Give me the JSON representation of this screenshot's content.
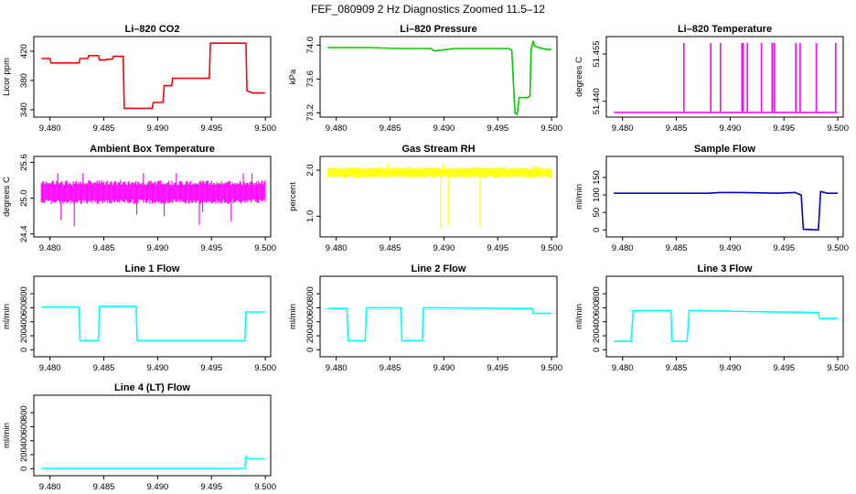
{
  "page_title": "FEF_080909  2 Hz Diagnostics Zoomed 11.5–12",
  "chart_data": [
    {
      "id": "p1",
      "type": "line",
      "title": "Li–820 CO2",
      "ylabel": "Licor ppm",
      "color": "#ff0000",
      "xlim": [
        9.4785,
        9.5005
      ],
      "ylim": [
        330,
        440
      ],
      "xticks": [
        "9.480",
        "9.485",
        "9.490",
        "9.495",
        "9.500"
      ],
      "yticks": [
        "340",
        "380",
        "420"
      ],
      "ytick_values": [
        340,
        380,
        420
      ],
      "x": [
        9.4792,
        9.48,
        9.4801,
        9.4827,
        9.4828,
        9.4835,
        9.4836,
        9.4845,
        9.4846,
        9.4852,
        9.4853,
        9.4858,
        9.4859,
        9.4868,
        9.4869,
        9.4895,
        9.4896,
        9.4905,
        9.4906,
        9.4913,
        9.4914,
        9.4948,
        9.4949,
        9.4982,
        9.4983,
        9.4988,
        9.5
      ],
      "y": [
        410,
        410,
        404,
        404,
        410,
        410,
        414,
        414,
        408,
        408,
        409,
        409,
        413,
        413,
        342,
        342,
        350,
        350,
        373,
        373,
        383,
        383,
        431,
        431,
        366,
        363,
        363
      ]
    },
    {
      "id": "p2",
      "type": "line",
      "title": "Li–820 Pressure",
      "ylabel": "kPa",
      "color": "#00cc00",
      "xlim": [
        9.4785,
        9.5005
      ],
      "ylim": [
        73.15,
        74.1
      ],
      "xticks": [
        "9.480",
        "9.485",
        "9.490",
        "9.495",
        "9.500"
      ],
      "yticks": [
        "73.2",
        "73.6",
        "74.0"
      ],
      "ytick_values": [
        73.2,
        73.6,
        74.0
      ],
      "x": [
        9.4792,
        9.483,
        9.486,
        9.4888,
        9.4891,
        9.491,
        9.4935,
        9.496,
        9.4963,
        9.4966,
        9.4968,
        9.497,
        9.4975,
        9.4978,
        9.498,
        9.4981,
        9.4983,
        9.4984,
        9.4988,
        9.4995,
        9.5
      ],
      "y": [
        73.97,
        73.97,
        73.96,
        73.96,
        73.93,
        73.96,
        73.96,
        73.96,
        73.94,
        73.2,
        73.18,
        73.38,
        73.38,
        73.38,
        73.4,
        73.95,
        74.05,
        73.99,
        73.97,
        73.95,
        73.95
      ]
    },
    {
      "id": "p3",
      "type": "spikes",
      "title": "Li–820 Temperature",
      "ylabel": "degrees C",
      "color": "#ff00ff",
      "xlim": [
        9.4785,
        9.5005
      ],
      "ylim": [
        51.435,
        51.4605
      ],
      "xticks": [
        "9.480",
        "9.485",
        "9.490",
        "9.495",
        "9.500"
      ],
      "yticks": [
        "51.440",
        "51.455"
      ],
      "ytick_values": [
        51.44,
        51.455
      ],
      "baseline": 51.4365,
      "peak": 51.4585,
      "spike_x": [
        9.4857,
        9.4882,
        9.4891,
        9.4911,
        9.4912,
        9.4916,
        9.4929,
        9.4939,
        9.4941,
        9.4961,
        9.4965,
        9.498,
        9.4998
      ]
    },
    {
      "id": "p4",
      "type": "band",
      "title": "Ambient Box Temperature",
      "ylabel": "degrees C",
      "color": "#ff00ff",
      "xlim": [
        9.4785,
        9.5005
      ],
      "ylim": [
        24.35,
        25.7
      ],
      "xticks": [
        "9.480",
        "9.485",
        "9.490",
        "9.495",
        "9.500"
      ],
      "yticks": [
        "24.4",
        "25.0",
        "25.6"
      ],
      "ytick_values": [
        24.4,
        25.0,
        25.6
      ],
      "x": [
        9.4792,
        9.5
      ],
      "center": [
        25.1,
        25.1
      ],
      "half_width": [
        0.2,
        0.2
      ],
      "spike_low": 24.45,
      "spike_high": 25.62
    },
    {
      "id": "p5",
      "type": "band",
      "title": "Gas Stream RH",
      "ylabel": "percent",
      "color": "#ffff00",
      "xlim": [
        9.4785,
        9.5005
      ],
      "ylim": [
        0.55,
        2.3
      ],
      "xticks": [
        "9.480",
        "9.485",
        "9.490",
        "9.495",
        "9.500"
      ],
      "yticks": [
        "1.0",
        "2.0"
      ],
      "ytick_values": [
        1.0,
        2.0
      ],
      "x": [
        9.4792,
        9.5
      ],
      "center": [
        1.95,
        1.95
      ],
      "half_width": [
        0.12,
        0.12
      ],
      "spike_low": 0.7,
      "spike_high": 2.2
    },
    {
      "id": "p6",
      "type": "line",
      "title": "Sample Flow",
      "ylabel": "ml/min",
      "color": "#0000cc",
      "xlim": [
        9.4785,
        9.5005
      ],
      "ylim": [
        -20,
        210
      ],
      "xticks": [
        "9.480",
        "9.485",
        "9.490",
        "9.495",
        "9.500"
      ],
      "yticks": [
        "0",
        "50",
        "100",
        "150"
      ],
      "ytick_values": [
        0,
        50,
        100,
        150
      ],
      "x": [
        9.4792,
        9.488,
        9.489,
        9.491,
        9.4945,
        9.496,
        9.4966,
        9.4968,
        9.498,
        9.4982,
        9.4984,
        9.499,
        9.5
      ],
      "y": [
        105,
        105,
        107,
        107,
        105,
        107,
        100,
        2,
        0,
        0,
        110,
        105,
        105
      ]
    },
    {
      "id": "p7",
      "type": "line",
      "title": "Line 1 Flow",
      "ylabel": "ml/min",
      "color": "#00ffff",
      "xlim": [
        9.4785,
        9.5005
      ],
      "ylim": [
        -100,
        1050
      ],
      "xticks": [
        "9.480",
        "9.485",
        "9.490",
        "9.495",
        "9.500"
      ],
      "yticks": [
        "0",
        "200",
        "400",
        "600",
        "800"
      ],
      "ytick_values": [
        0,
        200,
        400,
        600,
        800
      ],
      "x": [
        9.4792,
        9.4827,
        9.4828,
        9.4845,
        9.4846,
        9.488,
        9.4881,
        9.4981,
        9.4982,
        9.5
      ],
      "y": [
        610,
        610,
        130,
        130,
        620,
        620,
        130,
        130,
        540,
        540
      ]
    },
    {
      "id": "p8",
      "type": "line",
      "title": "Line 2 Flow",
      "ylabel": "ml/min",
      "color": "#00ffff",
      "xlim": [
        9.4785,
        9.5005
      ],
      "ylim": [
        -100,
        1050
      ],
      "xticks": [
        "9.480",
        "9.485",
        "9.490",
        "9.495",
        "9.500"
      ],
      "yticks": [
        "0",
        "200",
        "400",
        "600",
        "800"
      ],
      "ytick_values": [
        0,
        200,
        400,
        600,
        800
      ],
      "x": [
        9.4792,
        9.481,
        9.4811,
        9.4827,
        9.4828,
        9.486,
        9.4861,
        9.488,
        9.4881,
        9.4982,
        9.4983,
        9.5
      ],
      "y": [
        590,
        590,
        130,
        130,
        600,
        600,
        130,
        130,
        600,
        590,
        520,
        520
      ]
    },
    {
      "id": "p9",
      "type": "line",
      "title": "Line 3 Flow",
      "ylabel": "ml/min",
      "color": "#00ffff",
      "xlim": [
        9.4785,
        9.5005
      ],
      "ylim": [
        -100,
        1050
      ],
      "xticks": [
        "9.480",
        "9.485",
        "9.490",
        "9.495",
        "9.500"
      ],
      "yticks": [
        "0",
        "200",
        "400",
        "600",
        "800"
      ],
      "ytick_values": [
        0,
        200,
        400,
        600,
        800
      ],
      "x": [
        9.4792,
        9.4808,
        9.481,
        9.4845,
        9.4846,
        9.486,
        9.4862,
        9.4982,
        9.4983,
        9.5
      ],
      "y": [
        120,
        120,
        560,
        560,
        120,
        120,
        560,
        530,
        450,
        450
      ]
    },
    {
      "id": "p10",
      "type": "line",
      "title": "Line 4 (LT) Flow",
      "ylabel": "ml/min",
      "color": "#00ffff",
      "xlim": [
        9.4785,
        9.5005
      ],
      "ylim": [
        -100,
        1050
      ],
      "xticks": [
        "9.480",
        "9.485",
        "9.490",
        "9.495",
        "9.500"
      ],
      "yticks": [
        "0",
        "200",
        "400",
        "600",
        "800"
      ],
      "ytick_values": [
        0,
        200,
        400,
        600,
        800
      ],
      "x": [
        9.4792,
        9.4981,
        9.4982,
        9.4985,
        9.5
      ],
      "y": [
        5,
        5,
        170,
        140,
        140
      ]
    }
  ]
}
